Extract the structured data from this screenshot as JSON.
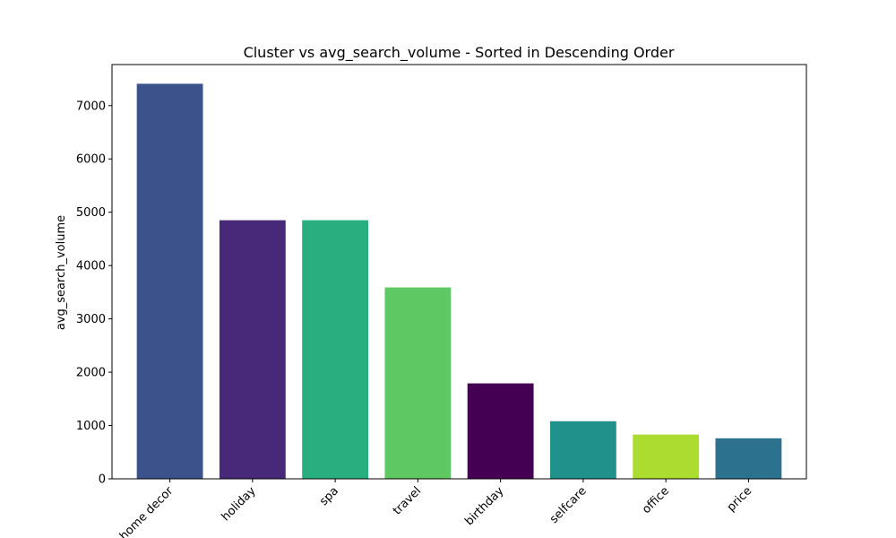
{
  "chart_data": {
    "type": "bar",
    "title": "Cluster vs avg_search_volume - Sorted in Descending Order",
    "xlabel": "",
    "ylabel": "avg_search_volume",
    "categories": [
      "home decor",
      "holiday",
      "spa",
      "travel",
      "birthday",
      "selfcare",
      "office",
      "price"
    ],
    "values": [
      7410,
      4850,
      4850,
      3590,
      1790,
      1080,
      830,
      760
    ],
    "colors": [
      "#3b528b",
      "#482878",
      "#29af7f",
      "#5ec962",
      "#440154",
      "#21918c",
      "#addc30",
      "#2c728e"
    ],
    "ylim": [
      0,
      7770
    ],
    "yticks": [
      0,
      1000,
      2000,
      3000,
      4000,
      5000,
      6000,
      7000
    ],
    "grid": false,
    "legend": "none"
  }
}
